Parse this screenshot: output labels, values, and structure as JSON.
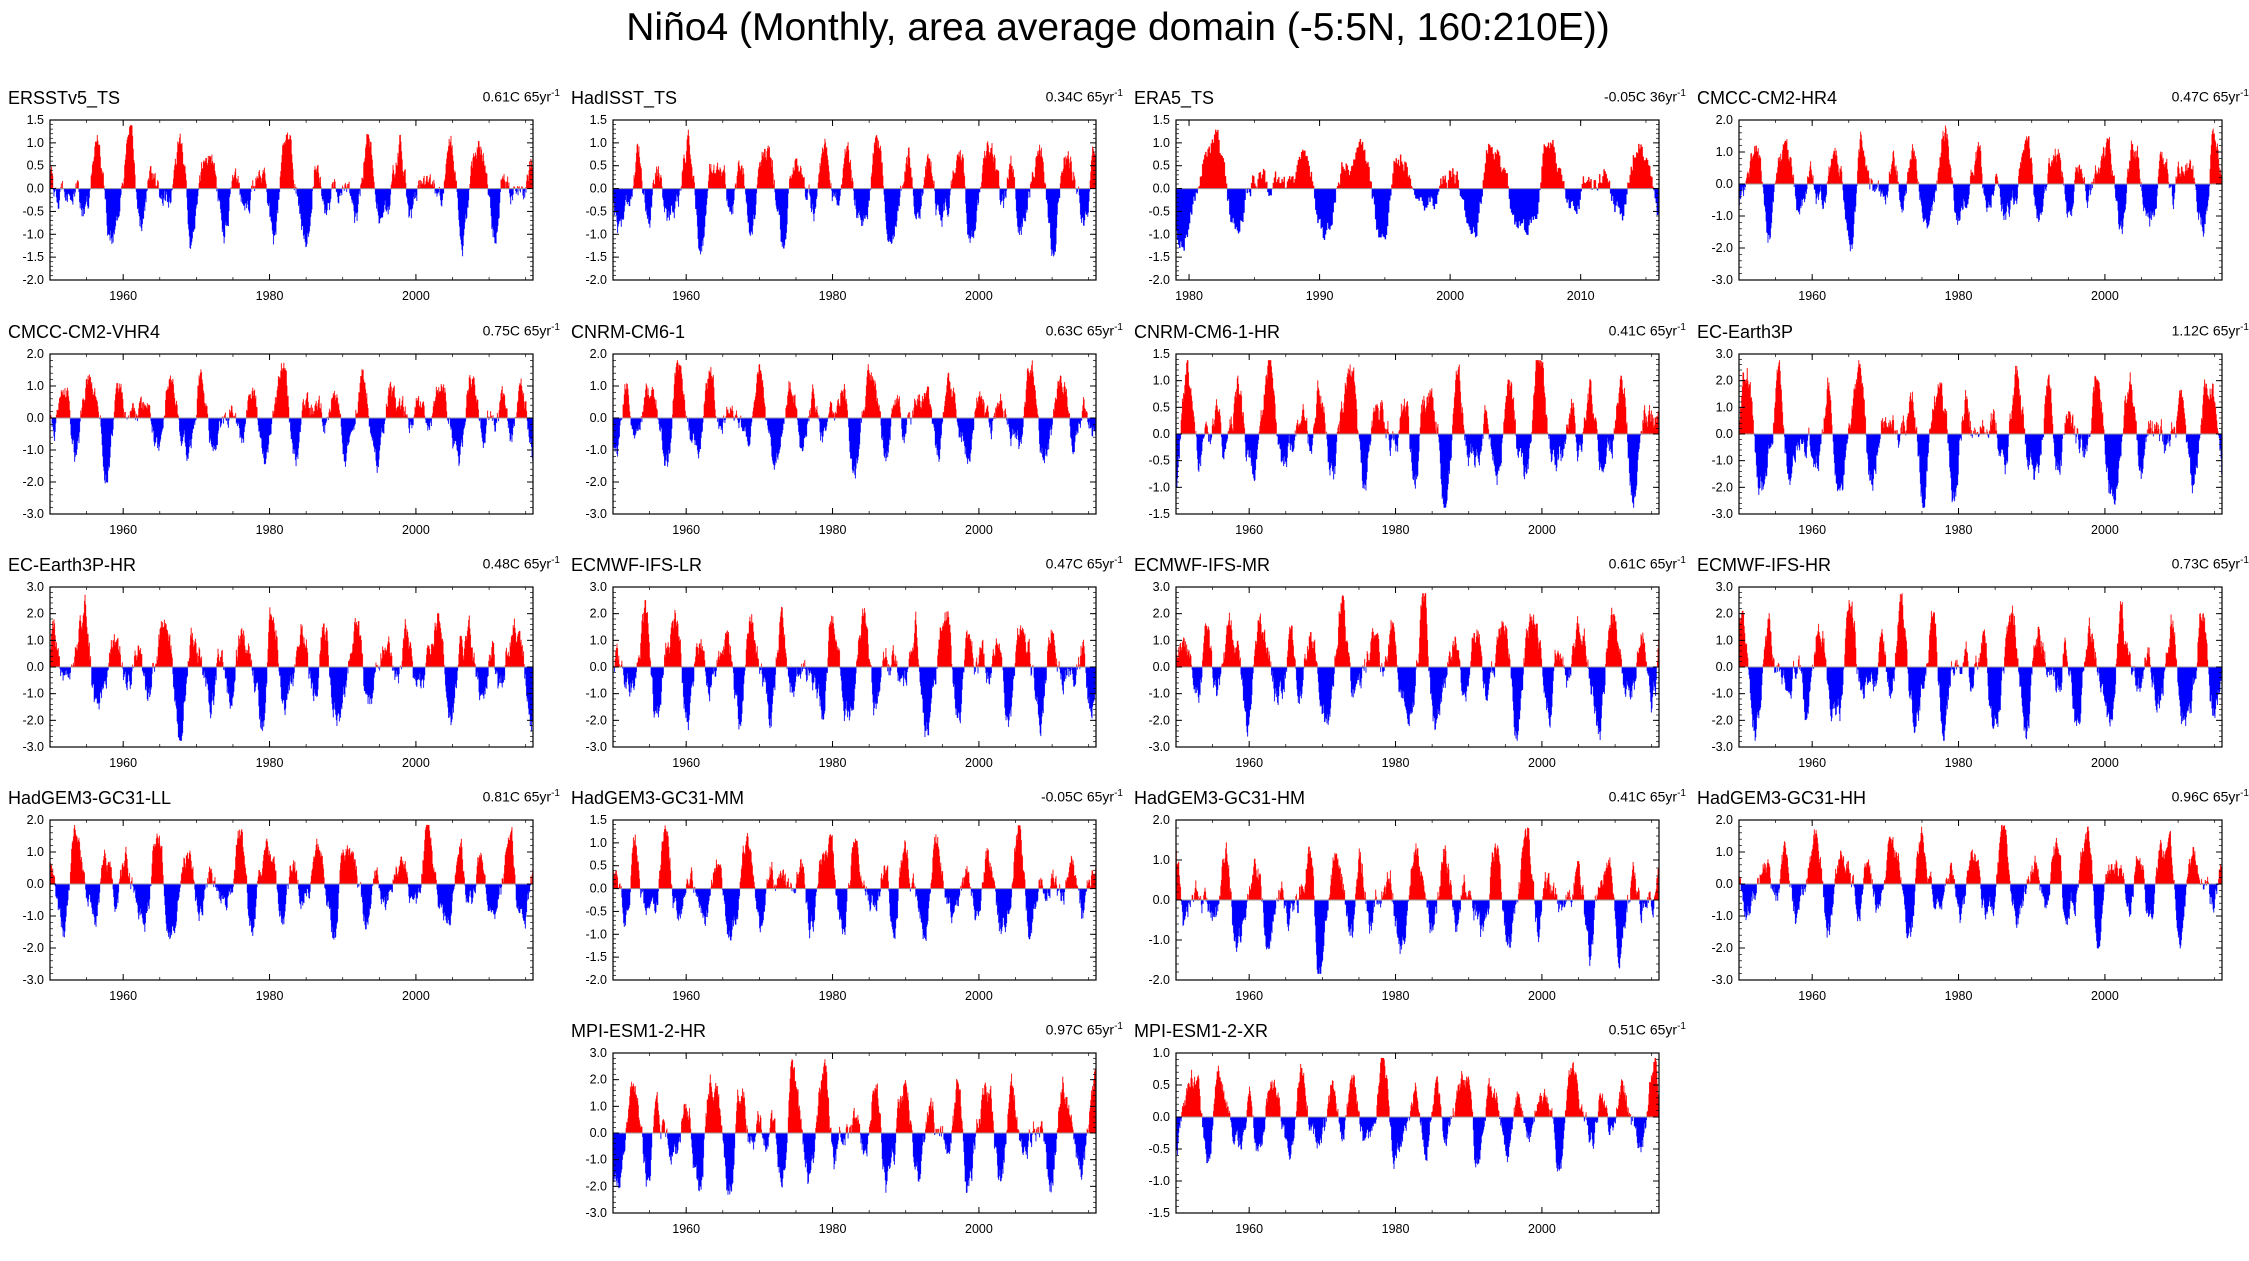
{
  "title": "Niño4 (Monthly, area average domain (-5:5N, 160:210E))",
  "colors": {
    "positive": "#ff0000",
    "negative": "#0000ff",
    "zero_line": "#999999",
    "axis": "#000000"
  },
  "chart_data": [
    {
      "name": "ERSSTv5_TS",
      "trend": "0.61C 65yr",
      "trend_unit": "-1",
      "type": "area",
      "ylim": [
        -2.0,
        1.5
      ],
      "yticks": [
        "1.5",
        "1.0",
        "0.5",
        "0.0",
        "-0.5",
        "-1.0",
        "-1.5",
        "-2.0"
      ],
      "xlim": [
        1950,
        2016
      ],
      "xticks": [
        "1960",
        "1980",
        "2000"
      ]
    },
    {
      "name": "HadISST_TS",
      "trend": "0.34C 65yr",
      "trend_unit": "-1",
      "type": "area",
      "ylim": [
        -2.0,
        1.5
      ],
      "yticks": [
        "1.5",
        "1.0",
        "0.5",
        "0.0",
        "-0.5",
        "-1.0",
        "-1.5",
        "-2.0"
      ],
      "xlim": [
        1950,
        2016
      ],
      "xticks": [
        "1960",
        "1980",
        "2000"
      ]
    },
    {
      "name": "ERA5_TS",
      "trend": "-0.05C 36yr",
      "trend_unit": "-1",
      "type": "area",
      "ylim": [
        -2.0,
        1.5
      ],
      "yticks": [
        "1.5",
        "1.0",
        "0.5",
        "0.0",
        "-0.5",
        "-1.0",
        "-1.5",
        "-2.0"
      ],
      "xlim": [
        1979,
        2016
      ],
      "xticks": [
        "1980",
        "1990",
        "2000",
        "2010"
      ]
    },
    {
      "name": "CMCC-CM2-HR4",
      "trend": "0.47C 65yr",
      "trend_unit": "-1",
      "type": "area",
      "ylim": [
        -3.0,
        2.0
      ],
      "yticks": [
        "2.0",
        "1.0",
        "0.0",
        "-1.0",
        "-2.0",
        "-3.0"
      ],
      "xlim": [
        1950,
        2016
      ],
      "xticks": [
        "1960",
        "1980",
        "2000"
      ]
    },
    {
      "name": "CMCC-CM2-VHR4",
      "trend": "0.75C 65yr",
      "trend_unit": "-1",
      "type": "area",
      "ylim": [
        -3.0,
        2.0
      ],
      "yticks": [
        "2.0",
        "1.0",
        "0.0",
        "-1.0",
        "-2.0",
        "-3.0"
      ],
      "xlim": [
        1950,
        2016
      ],
      "xticks": [
        "1960",
        "1980",
        "2000"
      ]
    },
    {
      "name": "CNRM-CM6-1",
      "trend": "0.63C 65yr",
      "trend_unit": "-1",
      "type": "area",
      "ylim": [
        -3.0,
        2.0
      ],
      "yticks": [
        "2.0",
        "1.0",
        "0.0",
        "-1.0",
        "-2.0",
        "-3.0"
      ],
      "xlim": [
        1950,
        2016
      ],
      "xticks": [
        "1960",
        "1980",
        "2000"
      ]
    },
    {
      "name": "CNRM-CM6-1-HR",
      "trend": "0.41C 65yr",
      "trend_unit": "-1",
      "type": "area",
      "ylim": [
        -1.5,
        1.5
      ],
      "yticks": [
        "1.5",
        "1.0",
        "0.5",
        "0.0",
        "-0.5",
        "-1.0",
        "-1.5"
      ],
      "xlim": [
        1950,
        2016
      ],
      "xticks": [
        "1960",
        "1980",
        "2000"
      ]
    },
    {
      "name": "EC-Earth3P",
      "trend": "1.12C 65yr",
      "trend_unit": "-1",
      "type": "area",
      "ylim": [
        -3.0,
        3.0
      ],
      "yticks": [
        "3.0",
        "2.0",
        "1.0",
        "0.0",
        "-1.0",
        "-2.0",
        "-3.0"
      ],
      "xlim": [
        1950,
        2016
      ],
      "xticks": [
        "1960",
        "1980",
        "2000"
      ]
    },
    {
      "name": "EC-Earth3P-HR",
      "trend": "0.48C 65yr",
      "trend_unit": "-1",
      "type": "area",
      "ylim": [
        -3.0,
        3.0
      ],
      "yticks": [
        "3.0",
        "2.0",
        "1.0",
        "0.0",
        "-1.0",
        "-2.0",
        "-3.0"
      ],
      "xlim": [
        1950,
        2016
      ],
      "xticks": [
        "1960",
        "1980",
        "2000"
      ]
    },
    {
      "name": "ECMWF-IFS-LR",
      "trend": "0.47C 65yr",
      "trend_unit": "-1",
      "type": "area",
      "ylim": [
        -3.0,
        3.0
      ],
      "yticks": [
        "3.0",
        "2.0",
        "1.0",
        "0.0",
        "-1.0",
        "-2.0",
        "-3.0"
      ],
      "xlim": [
        1950,
        2016
      ],
      "xticks": [
        "1960",
        "1980",
        "2000"
      ]
    },
    {
      "name": "ECMWF-IFS-MR",
      "trend": "0.61C 65yr",
      "trend_unit": "-1",
      "type": "area",
      "ylim": [
        -3.0,
        3.0
      ],
      "yticks": [
        "3.0",
        "2.0",
        "1.0",
        "0.0",
        "-1.0",
        "-2.0",
        "-3.0"
      ],
      "xlim": [
        1950,
        2016
      ],
      "xticks": [
        "1960",
        "1980",
        "2000"
      ]
    },
    {
      "name": "ECMWF-IFS-HR",
      "trend": "0.73C 65yr",
      "trend_unit": "-1",
      "type": "area",
      "ylim": [
        -3.0,
        3.0
      ],
      "yticks": [
        "3.0",
        "2.0",
        "1.0",
        "0.0",
        "-1.0",
        "-2.0",
        "-3.0"
      ],
      "xlim": [
        1950,
        2016
      ],
      "xticks": [
        "1960",
        "1980",
        "2000"
      ]
    },
    {
      "name": "HadGEM3-GC31-LL",
      "trend": "0.81C 65yr",
      "trend_unit": "-1",
      "type": "area",
      "ylim": [
        -3.0,
        2.0
      ],
      "yticks": [
        "2.0",
        "1.0",
        "0.0",
        "-1.0",
        "-2.0",
        "-3.0"
      ],
      "xlim": [
        1950,
        2016
      ],
      "xticks": [
        "1960",
        "1980",
        "2000"
      ]
    },
    {
      "name": "HadGEM3-GC31-MM",
      "trend": "-0.05C 65yr",
      "trend_unit": "-1",
      "type": "area",
      "ylim": [
        -2.0,
        1.5
      ],
      "yticks": [
        "1.5",
        "1.0",
        "0.5",
        "0.0",
        "-0.5",
        "-1.0",
        "-1.5",
        "-2.0"
      ],
      "xlim": [
        1950,
        2016
      ],
      "xticks": [
        "1960",
        "1980",
        "2000"
      ]
    },
    {
      "name": "HadGEM3-GC31-HM",
      "trend": "0.41C 65yr",
      "trend_unit": "-1",
      "type": "area",
      "ylim": [
        -2.0,
        2.0
      ],
      "yticks": [
        "2.0",
        "1.0",
        "0.0",
        "-1.0",
        "-2.0"
      ],
      "xlim": [
        1950,
        2016
      ],
      "xticks": [
        "1960",
        "1980",
        "2000"
      ]
    },
    {
      "name": "HadGEM3-GC31-HH",
      "trend": "0.96C 65yr",
      "trend_unit": "-1",
      "type": "area",
      "ylim": [
        -3.0,
        2.0
      ],
      "yticks": [
        "2.0",
        "1.0",
        "0.0",
        "-1.0",
        "-2.0",
        "-3.0"
      ],
      "xlim": [
        1950,
        2016
      ],
      "xticks": [
        "1960",
        "1980",
        "2000"
      ]
    },
    {
      "name": "MPI-ESM1-2-HR",
      "trend": "0.97C 65yr",
      "trend_unit": "-1",
      "type": "area",
      "ylim": [
        -3.0,
        3.0
      ],
      "yticks": [
        "3.0",
        "2.0",
        "1.0",
        "0.0",
        "-1.0",
        "-2.0",
        "-3.0"
      ],
      "xlim": [
        1950,
        2016
      ],
      "xticks": [
        "1960",
        "1980",
        "2000"
      ]
    },
    {
      "name": "MPI-ESM1-2-XR",
      "trend": "0.51C 65yr",
      "trend_unit": "-1",
      "type": "area",
      "ylim": [
        -1.5,
        1.0
      ],
      "yticks": [
        "1.0",
        "0.5",
        "0.0",
        "-0.5",
        "-1.0",
        "-1.5"
      ],
      "xlim": [
        1950,
        2016
      ],
      "xticks": [
        "1960",
        "1980",
        "2000"
      ]
    }
  ]
}
